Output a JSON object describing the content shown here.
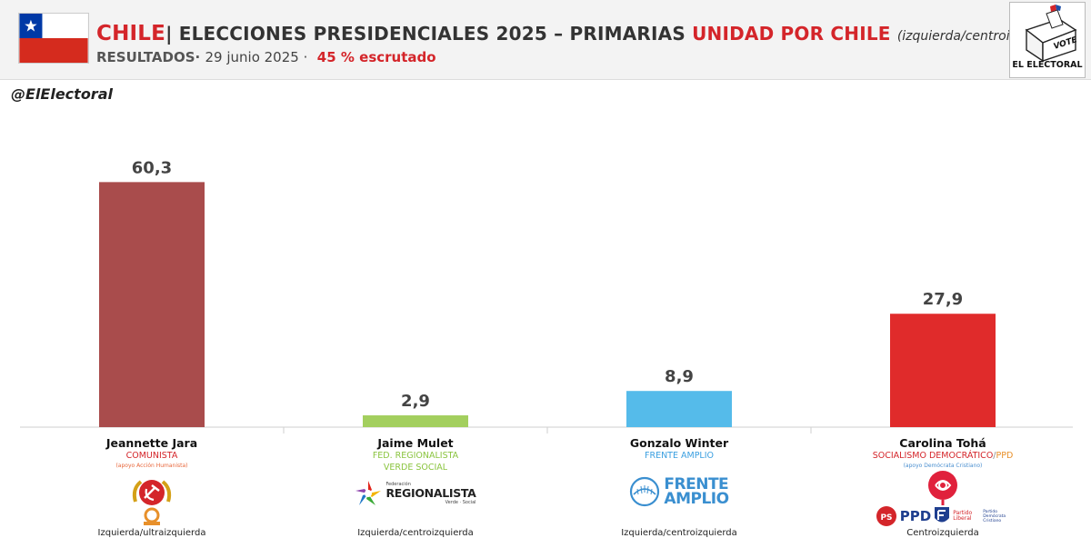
{
  "header": {
    "country": "CHILE",
    "separator": "|",
    "title": "ELECCIONES PRESIDENCIALES 2025 – PRIMARIAS",
    "coalition": "UNIDAD POR CHILE",
    "ideology": "(izquierda/centroizquierda)",
    "results_label": "RESULTADOS·",
    "date": "29 junio 2025 ·",
    "scrutiny": "45 % escrutado",
    "brand": "EL ELECTORAL",
    "ballot_word": "VOTE"
  },
  "handle": "@ElElectoral",
  "colors": {
    "jara": "#a94c4c",
    "mulet": "#a3cf5e",
    "winter": "#55bbea",
    "toha": "#e02b2b",
    "accent_red": "#d4252a"
  },
  "chart_data": {
    "type": "bar",
    "categories": [
      "Jeannette Jara",
      "Jaime Mulet",
      "Gonzalo Winter",
      "Carolina Tohá"
    ],
    "values": [
      60.3,
      2.9,
      8.9,
      27.9
    ],
    "value_labels": [
      "60,3",
      "2,9",
      "8,9",
      "27,9"
    ],
    "ylim": [
      0,
      70
    ],
    "unit": "%",
    "grid": false,
    "xlabel": "",
    "ylabel": ""
  },
  "candidates": [
    {
      "name": "Jeannette Jara",
      "party": "COMUNISTA",
      "party_color": "#d4252a",
      "support": "(apoyo Acción Humanista)",
      "support_color": "#e8663a",
      "ideology": "Izquierda/ultraizquierda"
    },
    {
      "name": "Jaime Mulet",
      "party": "FED. REGIONALISTA",
      "party2": "VERDE SOCIAL",
      "party_color": "#8ac43f",
      "logo_text": "REGIONALISTA",
      "logo_small_top": "Federación",
      "logo_small_bottom": "Verde · Social",
      "ideology": "Izquierda/centroizquierda"
    },
    {
      "name": "Gonzalo Winter",
      "party": "FRENTE AMPLIO",
      "party_color": "#3a9fe0",
      "logo_line1": "FRENTE",
      "logo_line2": "AMPLIO",
      "ideology": "Izquierda/centroizquierda"
    },
    {
      "name": "Carolina Tohá",
      "party": "SOCIALISMO DEMOCRÁTICO",
      "party_sep": "/",
      "party_extra": "PPD",
      "party_color": "#d4252a",
      "party_extra_color": "#e8902a",
      "support": "(apoyo Demócrata Cristiano)",
      "support_color": "#4a8fd0",
      "logo_ppd": "PPD",
      "logo_ps": "PS",
      "logo_liberal": "Partido Liberal",
      "logo_dc": "Partido Demócrata Cristiano",
      "ideology": "Centroizquierda"
    }
  ]
}
